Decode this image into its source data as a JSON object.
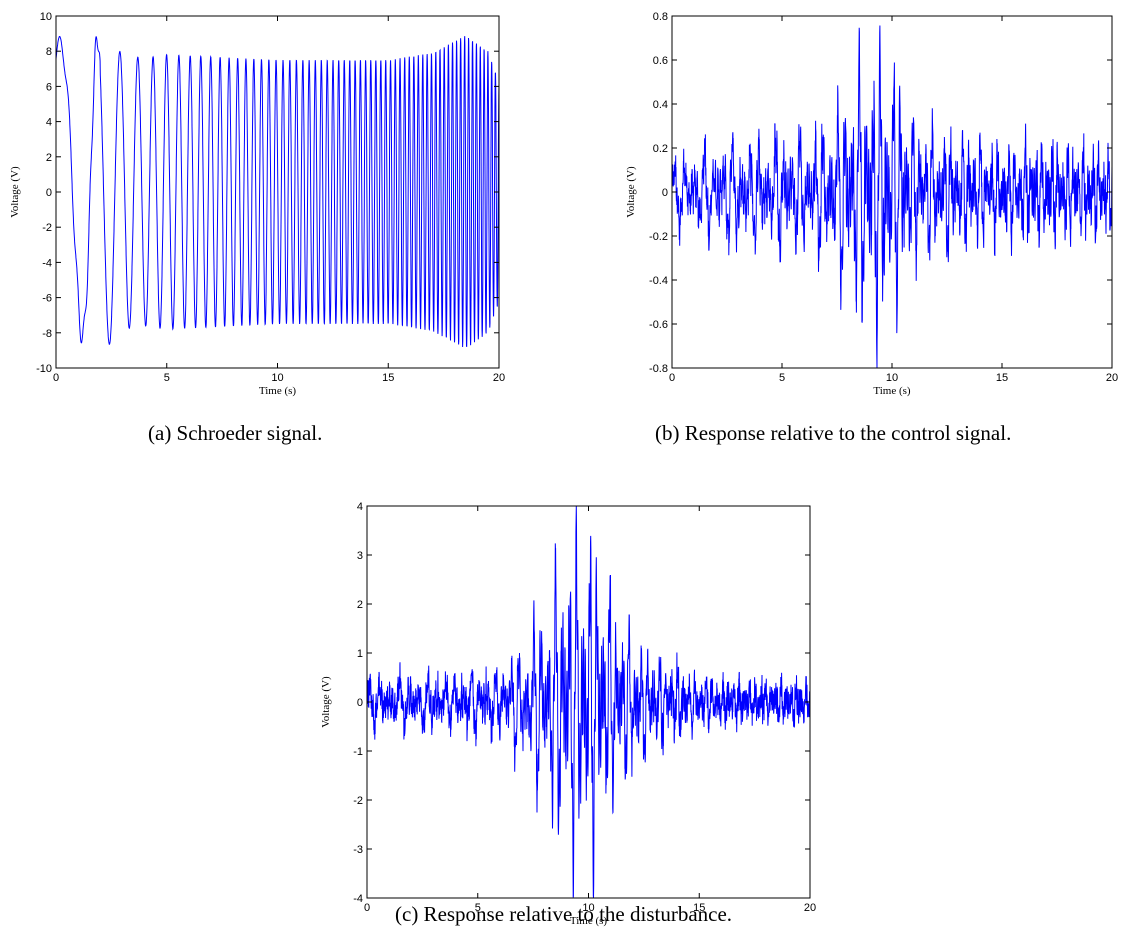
{
  "figure": {
    "captions": {
      "a": "(a)  Schroeder signal.",
      "b": "(b)  Response relative to the control signal.",
      "c": "(c)  Response relative to the disturbance."
    }
  },
  "chart_data": [
    {
      "id": "a",
      "type": "line",
      "xlabel": "Time (s)",
      "ylabel": "Voltage (V)",
      "xlim": [
        0,
        20
      ],
      "ylim": [
        -10,
        10
      ],
      "xticks": [
        0,
        5,
        10,
        15,
        20
      ],
      "yticks": [
        -10,
        -8,
        -6,
        -4,
        -2,
        0,
        2,
        4,
        6,
        8,
        10
      ],
      "grid": false,
      "color": "#0000ff",
      "series": [
        {
          "kind": "schroeder-chirp",
          "envelope_x": [
            0,
            0.5,
            1.0,
            1.5,
            2.0,
            2.5,
            3.0,
            4.0,
            5.0,
            10.0,
            15.0,
            17.0,
            18.5,
            19.5,
            20.0
          ],
          "envelope_y": [
            8.0,
            8.8,
            8.0,
            8.5,
            8.9,
            8.6,
            7.8,
            7.6,
            7.8,
            7.5,
            7.5,
            7.9,
            8.9,
            8.0,
            6.3
          ],
          "freq_start_hz": 0.3,
          "freq_end_hz": 6.0
        }
      ]
    },
    {
      "id": "b",
      "type": "line",
      "xlabel": "Time (s)",
      "ylabel": "Voltage (V)",
      "xlim": [
        0,
        20
      ],
      "ylim": [
        -0.8,
        0.8
      ],
      "xticks": [
        0,
        5,
        10,
        15,
        20
      ],
      "yticks": [
        -0.8,
        -0.6,
        -0.4,
        -0.2,
        0,
        0.2,
        0.4,
        0.6,
        0.8
      ],
      "grid": false,
      "color": "#0000ff",
      "series": [
        {
          "kind": "noisy-response",
          "envelope_x": [
            0,
            2,
            5,
            7,
            8,
            9,
            10,
            11,
            13,
            15,
            17,
            20
          ],
          "envelope_y": [
            0.12,
            0.22,
            0.25,
            0.28,
            0.45,
            0.63,
            0.55,
            0.3,
            0.22,
            0.2,
            0.2,
            0.17
          ],
          "noise": 0.06
        }
      ]
    },
    {
      "id": "c",
      "type": "line",
      "xlabel": "Time (s)",
      "ylabel": "Voltage (V)",
      "xlim": [
        0,
        20
      ],
      "ylim": [
        -4,
        4
      ],
      "xticks": [
        0,
        5,
        10,
        15,
        20
      ],
      "yticks": [
        -4,
        -3,
        -2,
        -1,
        0,
        1,
        2,
        3,
        4
      ],
      "grid": false,
      "color": "#0000ff",
      "series": [
        {
          "kind": "noisy-response",
          "envelope_x": [
            0,
            2,
            4,
            6,
            7,
            8,
            9,
            10,
            11,
            12,
            13,
            15,
            17,
            20
          ],
          "envelope_y": [
            0.35,
            0.5,
            0.45,
            0.7,
            1.1,
            1.9,
            3.0,
            3.3,
            2.2,
            1.3,
            0.9,
            0.45,
            0.3,
            0.3
          ],
          "noise": 0.25
        }
      ]
    }
  ]
}
